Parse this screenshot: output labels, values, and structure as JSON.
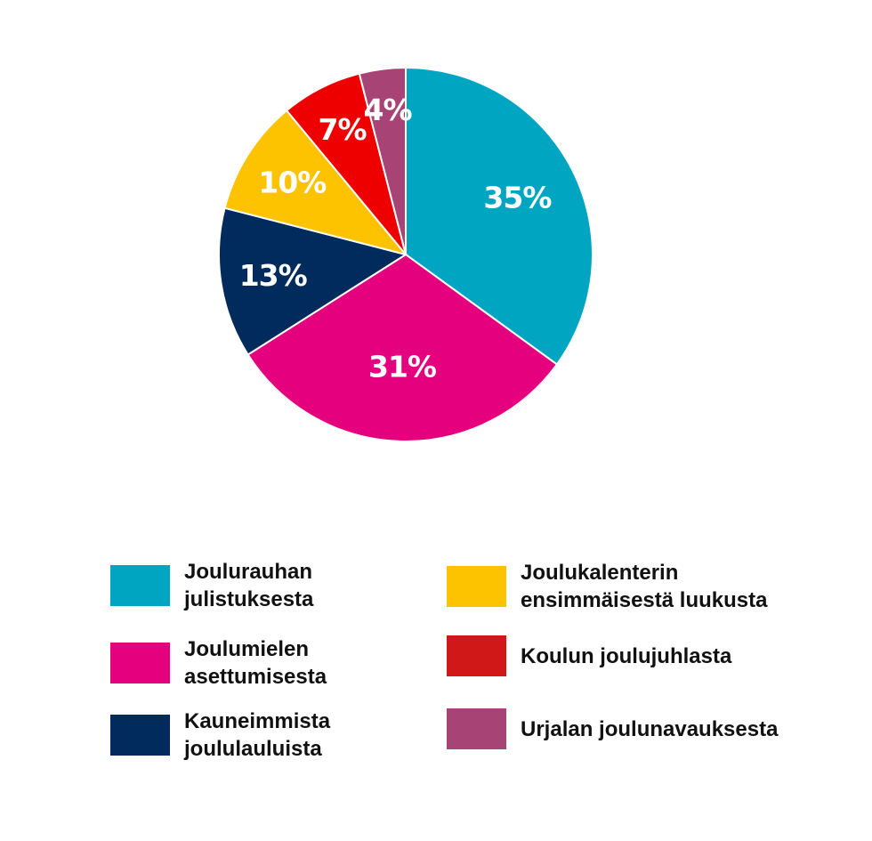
{
  "chart_data": {
    "type": "pie",
    "title": "",
    "slices": [
      {
        "label": "Joulurauhan\njulistuksesta",
        "value": 35,
        "display": "35%",
        "color": "#00a5c2"
      },
      {
        "label": "Joulumielen\nasettumisesta",
        "value": 31,
        "display": "31%",
        "color": "#e5007d"
      },
      {
        "label": "Kauneimmista\njoululauluista",
        "value": 13,
        "display": "13%",
        "color": "#002b5c"
      },
      {
        "label": "Joulukalenterin\nensimmäisestä luukusta",
        "value": 10,
        "display": "10%",
        "color": "#fdc300"
      },
      {
        "label": "Koulun joulujuhlasta",
        "value": 7,
        "display": "7%",
        "color": "#ef0000"
      },
      {
        "label": "Urjalan joulunavauksesta",
        "value": 4,
        "display": "4%",
        "color": "#a84375"
      }
    ],
    "start": "12 o'clock",
    "direction": "clockwise",
    "legend_position": "bottom"
  }
}
